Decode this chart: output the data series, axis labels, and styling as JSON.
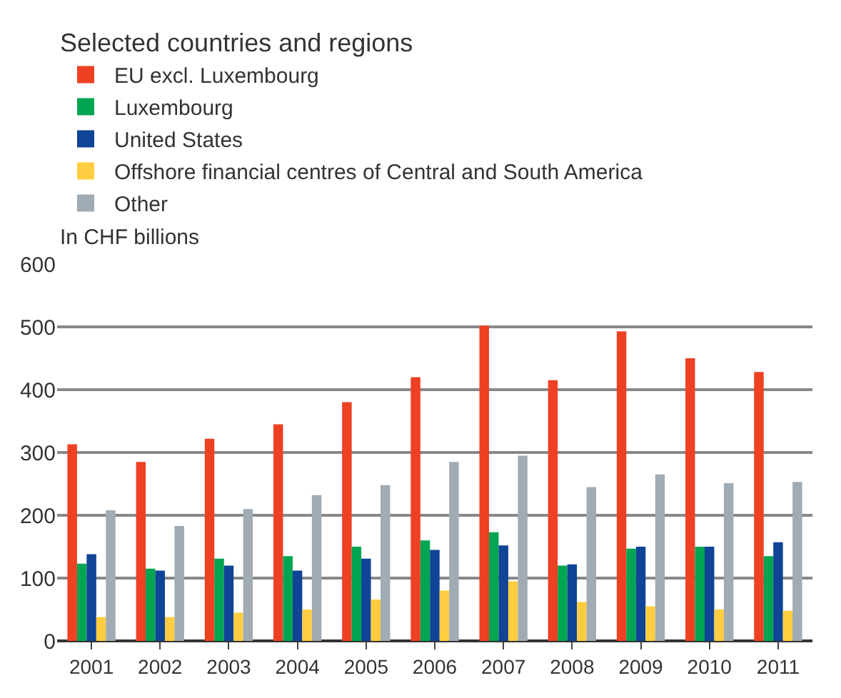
{
  "chart_data": {
    "type": "bar",
    "legend_title": "Selected countries and regions",
    "ylabel": "In CHF billions",
    "categories": [
      "2001",
      "2002",
      "2003",
      "2004",
      "2005",
      "2006",
      "2007",
      "2008",
      "2009",
      "2010",
      "2011"
    ],
    "series": [
      {
        "name": "EU excl. Luxembourg",
        "color": "#ee4023",
        "values": [
          313,
          285,
          322,
          345,
          380,
          420,
          502,
          415,
          493,
          450,
          428
        ]
      },
      {
        "name": "Luxembourg",
        "color": "#00a551",
        "values": [
          123,
          115,
          131,
          135,
          150,
          160,
          173,
          120,
          147,
          150,
          135
        ]
      },
      {
        "name": "United States",
        "color": "#0f4496",
        "values": [
          138,
          112,
          120,
          112,
          131,
          145,
          152,
          122,
          150,
          150,
          157
        ]
      },
      {
        "name": "Offshore financial centres of Central and South America",
        "color": "#ffcd3f",
        "values": [
          38,
          38,
          45,
          50,
          66,
          80,
          95,
          62,
          55,
          50,
          48
        ]
      },
      {
        "name": "Other",
        "color": "#a0abb3",
        "values": [
          208,
          183,
          210,
          232,
          248,
          285,
          295,
          245,
          265,
          251,
          253
        ]
      }
    ],
    "ylim": [
      0,
      600
    ],
    "yticks": [
      0,
      100,
      200,
      300,
      400,
      500,
      600
    ],
    "grid": "y",
    "legend": "top"
  }
}
